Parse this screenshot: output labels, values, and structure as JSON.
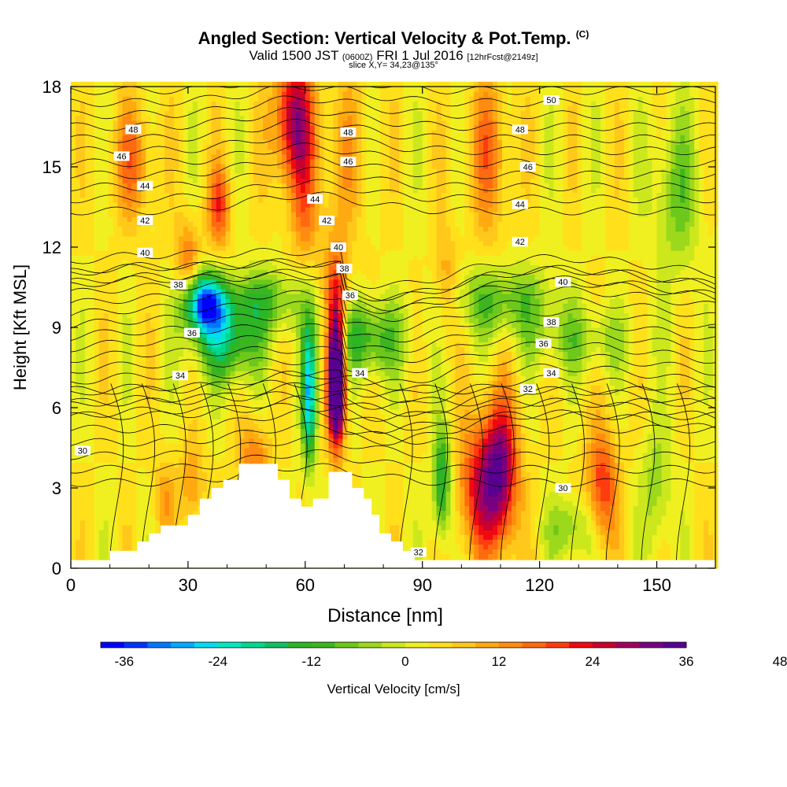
{
  "chart_data": {
    "type": "heatmap",
    "title": "Angled Section: Vertical Velocity & Pot.Temp.",
    "title_mark": "(C)",
    "subtitle_main": "Valid 1500 JST",
    "subtitle_z": "(0600Z)",
    "subtitle_date": "FRI 1 Jul 2016",
    "subtitle_fcst": "[12hrFcst@2149z]",
    "slice": "slice X,Y= 34,23@135°",
    "xlabel": "Distance [nm]",
    "ylabel": "Height [Kft MSL]",
    "xlim": [
      0,
      165
    ],
    "ylim": [
      0,
      18
    ],
    "xticks": [
      "0",
      "30",
      "60",
      "90",
      "120",
      "150"
    ],
    "yticks": [
      "0",
      "3",
      "6",
      "9",
      "12",
      "15",
      "18"
    ],
    "xtick_values": [
      0,
      30,
      60,
      90,
      120,
      150
    ],
    "ytick_values": [
      0,
      3,
      6,
      9,
      12,
      15,
      18
    ],
    "colorbar": {
      "label": "Vertical Velocity [cm/s]",
      "ticks": [
        "-36",
        "-24",
        "-12",
        "0",
        "12",
        "24",
        "36",
        "48"
      ],
      "tick_values": [
        -36,
        -24,
        -12,
        0,
        12,
        24,
        36,
        48
      ],
      "min": -39,
      "step": 3,
      "colors": [
        "#0000ff",
        "#0033ff",
        "#0077ff",
        "#00aaff",
        "#00ddf0",
        "#00e8c0",
        "#00d890",
        "#10c060",
        "#2db525",
        "#3cb520",
        "#6cc81a",
        "#9cd81c",
        "#cce81c",
        "#f0f020",
        "#ffe01a",
        "#ffc81a",
        "#ffaa10",
        "#ff8c10",
        "#ff6a10",
        "#ff3c10",
        "#ee0a10",
        "#c80030",
        "#a00060",
        "#780080",
        "#5a0090"
      ]
    },
    "terrain_steps": [
      [
        0,
        0.3
      ],
      [
        10,
        0.3
      ],
      [
        10,
        0.65
      ],
      [
        17,
        0.65
      ],
      [
        17,
        1.0
      ],
      [
        20,
        1.0
      ],
      [
        20,
        1.3
      ],
      [
        23,
        1.3
      ],
      [
        23,
        1.6
      ],
      [
        30,
        1.6
      ],
      [
        30,
        2.0
      ],
      [
        33,
        2.0
      ],
      [
        33,
        2.6
      ],
      [
        36,
        2.6
      ],
      [
        36,
        3.0
      ],
      [
        39,
        3.0
      ],
      [
        39,
        3.3
      ],
      [
        43,
        3.3
      ],
      [
        43,
        3.9
      ],
      [
        53,
        3.9
      ],
      [
        53,
        3.3
      ],
      [
        56,
        3.3
      ],
      [
        56,
        2.6
      ],
      [
        59,
        2.6
      ],
      [
        59,
        2.3
      ],
      [
        62,
        2.3
      ],
      [
        62,
        2.6
      ],
      [
        66,
        2.6
      ],
      [
        66,
        3.6
      ],
      [
        72,
        3.6
      ],
      [
        72,
        3.0
      ],
      [
        75,
        3.0
      ],
      [
        75,
        2.6
      ],
      [
        77,
        2.6
      ],
      [
        77,
        2.0
      ],
      [
        79,
        2.0
      ],
      [
        79,
        1.3
      ],
      [
        82,
        1.3
      ],
      [
        82,
        1.0
      ],
      [
        85,
        1.0
      ],
      [
        85,
        0.65
      ],
      [
        88,
        0.65
      ],
      [
        88,
        0.3
      ],
      [
        165,
        0.3
      ]
    ],
    "theta_levels": [
      30,
      32,
      34,
      36,
      38,
      40,
      42,
      44,
      46,
      48,
      50
    ],
    "contour_labels": [
      {
        "text": "48",
        "x": 16,
        "y": 16.4
      },
      {
        "text": "46",
        "x": 13,
        "y": 15.4
      },
      {
        "text": "44",
        "x": 19,
        "y": 14.3
      },
      {
        "text": "42",
        "x": 19,
        "y": 13.0
      },
      {
        "text": "40",
        "x": 19,
        "y": 11.8
      },
      {
        "text": "38",
        "x": 27.5,
        "y": 10.6
      },
      {
        "text": "36",
        "x": 31,
        "y": 8.8
      },
      {
        "text": "34",
        "x": 28,
        "y": 7.2
      },
      {
        "text": "30",
        "x": 3,
        "y": 4.4
      },
      {
        "text": "48",
        "x": 71,
        "y": 16.3
      },
      {
        "text": "46",
        "x": 71,
        "y": 15.2
      },
      {
        "text": "44",
        "x": 62.5,
        "y": 13.8
      },
      {
        "text": "42",
        "x": 65.5,
        "y": 13.0
      },
      {
        "text": "40",
        "x": 68.5,
        "y": 12.0
      },
      {
        "text": "38",
        "x": 70,
        "y": 11.2
      },
      {
        "text": "36",
        "x": 71.5,
        "y": 10.2
      },
      {
        "text": "34",
        "x": 74,
        "y": 7.3
      },
      {
        "text": "50",
        "x": 123,
        "y": 17.5
      },
      {
        "text": "48",
        "x": 115,
        "y": 16.4
      },
      {
        "text": "46",
        "x": 117,
        "y": 15.0
      },
      {
        "text": "44",
        "x": 115,
        "y": 13.6
      },
      {
        "text": "42",
        "x": 115,
        "y": 12.2
      },
      {
        "text": "40",
        "x": 126,
        "y": 10.7
      },
      {
        "text": "38",
        "x": 123,
        "y": 9.2
      },
      {
        "text": "36",
        "x": 121,
        "y": 8.4
      },
      {
        "text": "34",
        "x": 123,
        "y": 7.3
      },
      {
        "text": "32",
        "x": 117,
        "y": 6.7
      },
      {
        "text": "30",
        "x": 126,
        "y": 3.0
      },
      {
        "text": "32",
        "x": 89,
        "y": 0.6
      }
    ]
  }
}
